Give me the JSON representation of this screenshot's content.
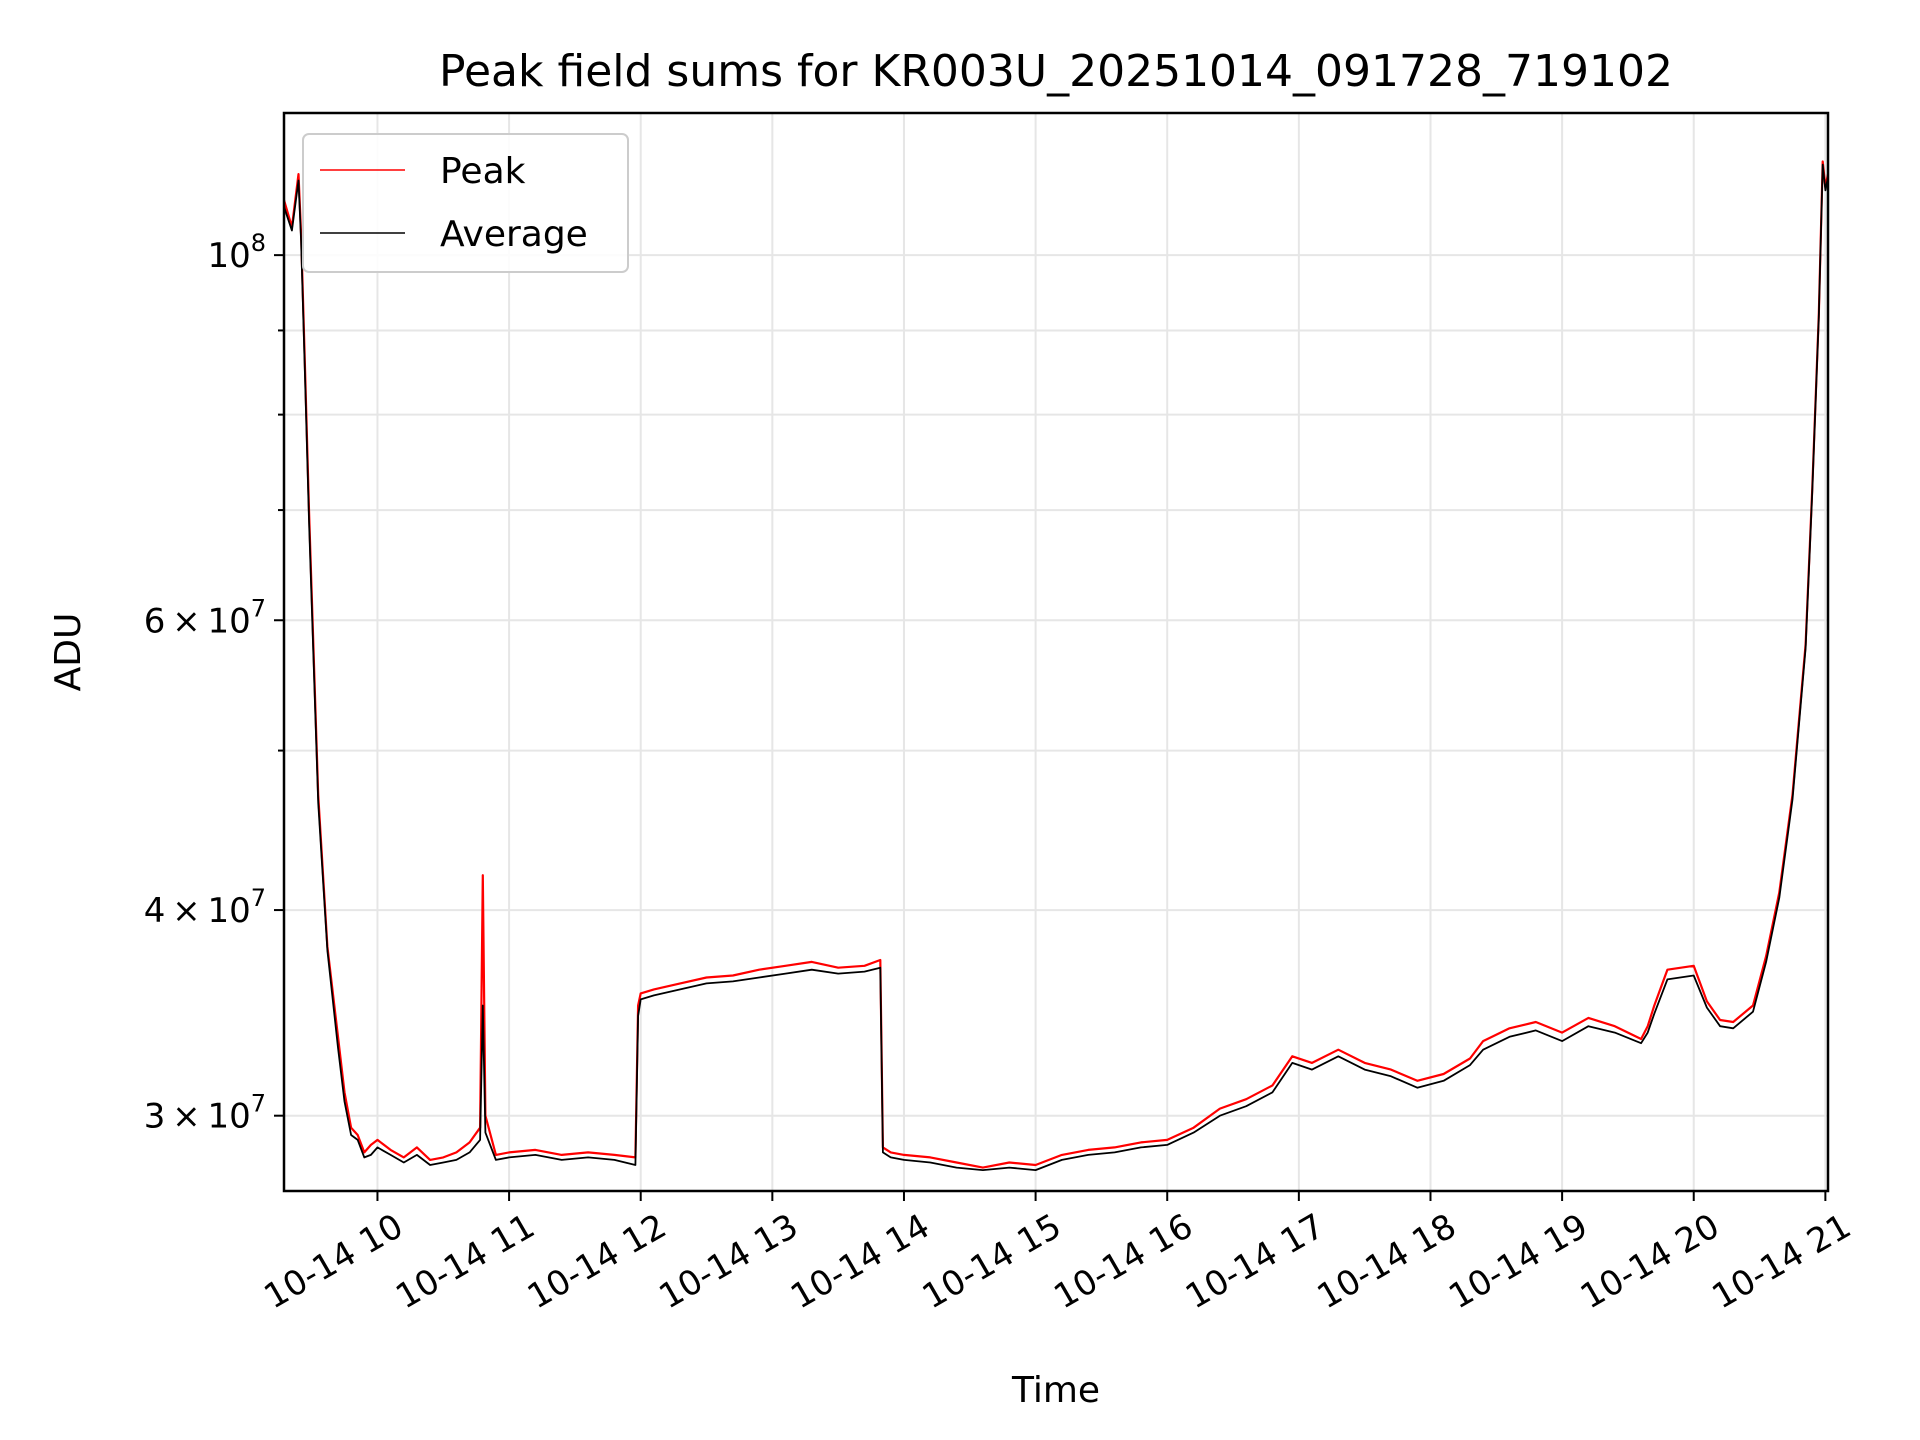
{
  "chart_data": {
    "type": "line",
    "title": "Peak field sums for KR003U_20251014_091728_719102",
    "xlabel": "Time",
    "ylabel": "ADU",
    "y_scale": "log",
    "ylim": [
      27000000,
      122000000
    ],
    "x_unit": "hours on 2025-10-14",
    "xlim": [
      9.29,
      21.02
    ],
    "x_ticks": [
      {
        "value": 10,
        "label": "10-14 10"
      },
      {
        "value": 11,
        "label": "10-14 11"
      },
      {
        "value": 12,
        "label": "10-14 12"
      },
      {
        "value": 13,
        "label": "10-14 13"
      },
      {
        "value": 14,
        "label": "10-14 14"
      },
      {
        "value": 15,
        "label": "10-14 15"
      },
      {
        "value": 16,
        "label": "10-14 16"
      },
      {
        "value": 17,
        "label": "10-14 17"
      },
      {
        "value": 18,
        "label": "10-14 18"
      },
      {
        "value": 19,
        "label": "10-14 19"
      },
      {
        "value": 20,
        "label": "10-14 20"
      },
      {
        "value": 21,
        "label": "10-14 21"
      }
    ],
    "y_ticks": [
      {
        "value": 100000000,
        "base": "10",
        "exp": "8",
        "mant": ""
      },
      {
        "value": 60000000,
        "base": "10",
        "exp": "7",
        "mant": "6"
      },
      {
        "value": 40000000,
        "base": "10",
        "exp": "7",
        "mant": "4"
      },
      {
        "value": 30000000,
        "base": "10",
        "exp": "7",
        "mant": "3"
      }
    ],
    "y_minor_ticks": [
      50000000,
      70000000,
      80000000,
      90000000
    ],
    "grid": true,
    "legend_position": "top-left",
    "series": [
      {
        "name": "Peak",
        "color": "#ff0000",
        "x": [
          9.29,
          9.35,
          9.4,
          9.42,
          9.45,
          9.48,
          9.55,
          9.62,
          9.7,
          9.75,
          9.8,
          9.85,
          9.9,
          9.95,
          10.0,
          10.1,
          10.2,
          10.3,
          10.4,
          10.5,
          10.6,
          10.7,
          10.78,
          10.8,
          10.82,
          10.9,
          11.0,
          11.2,
          11.4,
          11.6,
          11.8,
          11.96,
          11.98,
          12.0,
          12.1,
          12.3,
          12.5,
          12.7,
          12.9,
          13.1,
          13.3,
          13.5,
          13.7,
          13.82,
          13.84,
          13.9,
          14.0,
          14.2,
          14.4,
          14.6,
          14.8,
          15.0,
          15.2,
          15.4,
          15.6,
          15.8,
          16.0,
          16.2,
          16.4,
          16.6,
          16.8,
          16.95,
          17.1,
          17.3,
          17.5,
          17.7,
          17.9,
          18.1,
          18.3,
          18.4,
          18.6,
          18.8,
          19.0,
          19.2,
          19.4,
          19.6,
          19.65,
          19.7,
          19.8,
          20.0,
          20.1,
          20.2,
          20.3,
          20.45,
          20.55,
          20.65,
          20.75,
          20.85,
          20.9,
          20.95,
          20.98,
          21.0,
          21.02
        ],
        "values": [
          108000000,
          104000000,
          112000000,
          103000000,
          85000000,
          70000000,
          47000000,
          38000000,
          33500000,
          31000000,
          29500000,
          29200000,
          28500000,
          28800000,
          29000000,
          28600000,
          28300000,
          28700000,
          28200000,
          28300000,
          28500000,
          28900000,
          29500000,
          42000000,
          30000000,
          28400000,
          28500000,
          28600000,
          28400000,
          28500000,
          28400000,
          28300000,
          35000000,
          35600000,
          35800000,
          36100000,
          36400000,
          36500000,
          36800000,
          37000000,
          37200000,
          36900000,
          37000000,
          37300000,
          28700000,
          28500000,
          28400000,
          28300000,
          28100000,
          27900000,
          28100000,
          28000000,
          28400000,
          28600000,
          28700000,
          28900000,
          29000000,
          29500000,
          30300000,
          30700000,
          31300000,
          32600000,
          32300000,
          32900000,
          32300000,
          32000000,
          31500000,
          31800000,
          32500000,
          33300000,
          33900000,
          34200000,
          33700000,
          34400000,
          34000000,
          33400000,
          34000000,
          35000000,
          36800000,
          37000000,
          35200000,
          34300000,
          34200000,
          35000000,
          37500000,
          41000000,
          47000000,
          58000000,
          72000000,
          92000000,
          114000000,
          110000000,
          112000000
        ]
      },
      {
        "name": "Average",
        "color": "#000000",
        "x": [
          9.29,
          9.35,
          9.4,
          9.42,
          9.45,
          9.48,
          9.55,
          9.62,
          9.7,
          9.75,
          9.8,
          9.85,
          9.9,
          9.95,
          10.0,
          10.1,
          10.2,
          10.3,
          10.4,
          10.5,
          10.6,
          10.7,
          10.78,
          10.8,
          10.82,
          10.9,
          11.0,
          11.2,
          11.4,
          11.6,
          11.8,
          11.96,
          11.98,
          12.0,
          12.1,
          12.3,
          12.5,
          12.7,
          12.9,
          13.1,
          13.3,
          13.5,
          13.7,
          13.82,
          13.84,
          13.9,
          14.0,
          14.2,
          14.4,
          14.6,
          14.8,
          15.0,
          15.2,
          15.4,
          15.6,
          15.8,
          16.0,
          16.2,
          16.4,
          16.6,
          16.8,
          16.95,
          17.1,
          17.3,
          17.5,
          17.7,
          17.9,
          18.1,
          18.3,
          18.4,
          18.6,
          18.8,
          19.0,
          19.2,
          19.4,
          19.6,
          19.65,
          19.7,
          19.8,
          20.0,
          20.1,
          20.2,
          20.3,
          20.45,
          20.55,
          20.65,
          20.75,
          20.85,
          20.9,
          20.95,
          20.98,
          21.0,
          21.02
        ],
        "values": [
          107000000,
          103500000,
          111000000,
          102000000,
          84000000,
          69000000,
          46500000,
          37800000,
          33000000,
          30600000,
          29200000,
          29000000,
          28300000,
          28400000,
          28700000,
          28400000,
          28100000,
          28400000,
          28000000,
          28100000,
          28200000,
          28500000,
          29000000,
          35000000,
          29300000,
          28200000,
          28300000,
          28400000,
          28200000,
          28300000,
          28200000,
          28000000,
          34500000,
          35300000,
          35500000,
          35800000,
          36100000,
          36200000,
          36400000,
          36600000,
          36800000,
          36600000,
          36700000,
          36900000,
          28500000,
          28300000,
          28200000,
          28100000,
          27900000,
          27800000,
          27900000,
          27800000,
          28200000,
          28400000,
          28500000,
          28700000,
          28800000,
          29300000,
          30000000,
          30400000,
          31000000,
          32300000,
          32000000,
          32600000,
          32000000,
          31700000,
          31200000,
          31500000,
          32200000,
          32900000,
          33500000,
          33800000,
          33300000,
          34000000,
          33700000,
          33200000,
          33700000,
          34600000,
          36300000,
          36500000,
          34900000,
          34000000,
          33900000,
          34700000,
          37200000,
          40700000,
          46700000,
          57700000,
          71700000,
          91700000,
          113500000,
          109500000,
          111500000
        ]
      }
    ]
  }
}
